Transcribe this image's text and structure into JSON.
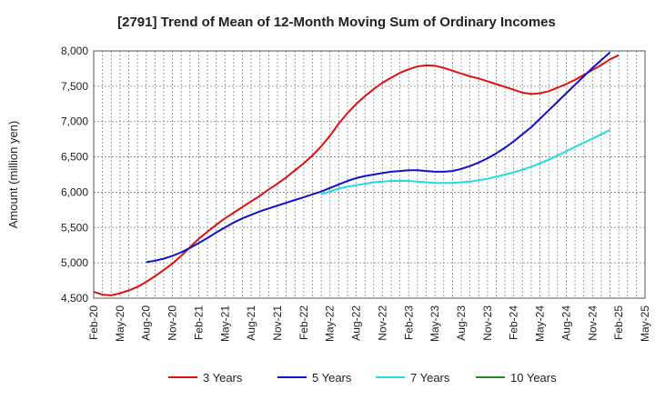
{
  "chart_data": {
    "type": "line",
    "title": "[2791]  Trend of Mean of 12-Month Moving Sum of Ordinary Incomes",
    "xlabel": "",
    "ylabel": "Amount (million yen)",
    "ylim": [
      4500,
      8000
    ],
    "yticks": [
      4500,
      5000,
      5500,
      6000,
      6500,
      7000,
      7500,
      8000
    ],
    "ytick_labels": [
      "4,500",
      "5,000",
      "5,500",
      "6,000",
      "6,500",
      "7,000",
      "7,500",
      "8,000"
    ],
    "xticks": [
      "Feb-20",
      "May-20",
      "Aug-20",
      "Nov-20",
      "Feb-21",
      "May-21",
      "Aug-21",
      "Nov-21",
      "Feb-22",
      "May-22",
      "Aug-22",
      "Nov-22",
      "Feb-23",
      "May-23",
      "Aug-23",
      "Nov-23",
      "Feb-24",
      "May-24",
      "Aug-24",
      "Nov-24",
      "Feb-25",
      "May-25"
    ],
    "grid": true,
    "legend_position": "bottom",
    "series": [
      {
        "name": "3 Years",
        "color": "#dd1111",
        "points": [
          [
            0,
            4590
          ],
          [
            1,
            4550
          ],
          [
            2,
            4540
          ],
          [
            3,
            4570
          ],
          [
            4,
            4610
          ],
          [
            5,
            4660
          ],
          [
            6,
            4730
          ],
          [
            7,
            4810
          ],
          [
            8,
            4900
          ],
          [
            9,
            4990
          ],
          [
            10,
            5100
          ],
          [
            11,
            5220
          ],
          [
            12,
            5340
          ],
          [
            13,
            5440
          ],
          [
            14,
            5540
          ],
          [
            15,
            5630
          ],
          [
            16,
            5710
          ],
          [
            17,
            5790
          ],
          [
            18,
            5870
          ],
          [
            19,
            5950
          ],
          [
            20,
            6040
          ],
          [
            21,
            6120
          ],
          [
            22,
            6210
          ],
          [
            23,
            6310
          ],
          [
            24,
            6410
          ],
          [
            25,
            6520
          ],
          [
            26,
            6650
          ],
          [
            27,
            6800
          ],
          [
            28,
            6970
          ],
          [
            29,
            7120
          ],
          [
            30,
            7250
          ],
          [
            31,
            7360
          ],
          [
            32,
            7460
          ],
          [
            33,
            7550
          ],
          [
            34,
            7620
          ],
          [
            35,
            7690
          ],
          [
            36,
            7740
          ],
          [
            37,
            7780
          ],
          [
            38,
            7795
          ],
          [
            39,
            7790
          ],
          [
            40,
            7760
          ],
          [
            41,
            7720
          ],
          [
            42,
            7680
          ],
          [
            43,
            7640
          ],
          [
            44,
            7610
          ],
          [
            45,
            7570
          ],
          [
            46,
            7530
          ],
          [
            47,
            7490
          ],
          [
            48,
            7450
          ],
          [
            49,
            7410
          ],
          [
            50,
            7390
          ],
          [
            51,
            7400
          ],
          [
            52,
            7430
          ],
          [
            53,
            7480
          ],
          [
            54,
            7530
          ],
          [
            55,
            7590
          ],
          [
            56,
            7660
          ],
          [
            57,
            7730
          ],
          [
            58,
            7800
          ],
          [
            59,
            7880
          ],
          [
            60,
            7940
          ]
        ]
      },
      {
        "name": "5 Years",
        "color": "#1111cc",
        "points": [
          [
            6,
            5010
          ],
          [
            7,
            5030
          ],
          [
            8,
            5060
          ],
          [
            9,
            5100
          ],
          [
            10,
            5150
          ],
          [
            11,
            5210
          ],
          [
            12,
            5280
          ],
          [
            13,
            5350
          ],
          [
            14,
            5430
          ],
          [
            15,
            5500
          ],
          [
            16,
            5570
          ],
          [
            17,
            5630
          ],
          [
            18,
            5680
          ],
          [
            19,
            5730
          ],
          [
            20,
            5770
          ],
          [
            21,
            5810
          ],
          [
            22,
            5850
          ],
          [
            23,
            5890
          ],
          [
            24,
            5930
          ],
          [
            25,
            5970
          ],
          [
            26,
            6010
          ],
          [
            27,
            6060
          ],
          [
            28,
            6110
          ],
          [
            29,
            6160
          ],
          [
            30,
            6200
          ],
          [
            31,
            6230
          ],
          [
            32,
            6250
          ],
          [
            33,
            6270
          ],
          [
            34,
            6290
          ],
          [
            35,
            6300
          ],
          [
            36,
            6310
          ],
          [
            37,
            6310
          ],
          [
            38,
            6300
          ],
          [
            39,
            6290
          ],
          [
            40,
            6290
          ],
          [
            41,
            6300
          ],
          [
            42,
            6330
          ],
          [
            43,
            6370
          ],
          [
            44,
            6420
          ],
          [
            45,
            6480
          ],
          [
            46,
            6550
          ],
          [
            47,
            6630
          ],
          [
            48,
            6720
          ],
          [
            49,
            6820
          ],
          [
            50,
            6920
          ],
          [
            51,
            7040
          ],
          [
            52,
            7160
          ],
          [
            53,
            7280
          ],
          [
            54,
            7400
          ],
          [
            55,
            7520
          ],
          [
            56,
            7640
          ],
          [
            57,
            7760
          ],
          [
            58,
            7870
          ],
          [
            59,
            7980
          ]
        ]
      },
      {
        "name": "7 Years",
        "color": "#22dddd",
        "points": [
          [
            26,
            5970
          ],
          [
            27,
            6010
          ],
          [
            28,
            6050
          ],
          [
            29,
            6080
          ],
          [
            30,
            6100
          ],
          [
            31,
            6120
          ],
          [
            32,
            6140
          ],
          [
            33,
            6150
          ],
          [
            34,
            6160
          ],
          [
            35,
            6160
          ],
          [
            36,
            6160
          ],
          [
            37,
            6150
          ],
          [
            38,
            6140
          ],
          [
            39,
            6130
          ],
          [
            40,
            6130
          ],
          [
            41,
            6130
          ],
          [
            42,
            6140
          ],
          [
            43,
            6150
          ],
          [
            44,
            6170
          ],
          [
            45,
            6190
          ],
          [
            46,
            6220
          ],
          [
            47,
            6250
          ],
          [
            48,
            6280
          ],
          [
            49,
            6320
          ],
          [
            50,
            6360
          ],
          [
            51,
            6410
          ],
          [
            52,
            6460
          ],
          [
            53,
            6520
          ],
          [
            54,
            6580
          ],
          [
            55,
            6640
          ],
          [
            56,
            6700
          ],
          [
            57,
            6760
          ],
          [
            58,
            6820
          ],
          [
            59,
            6880
          ]
        ]
      },
      {
        "name": "10 Years",
        "color": "#228822",
        "points": []
      }
    ]
  }
}
